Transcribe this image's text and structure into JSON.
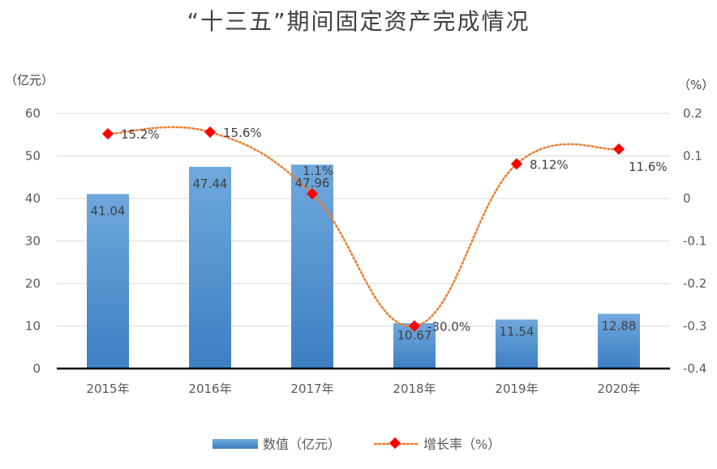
{
  "chart_data": {
    "type": "bar",
    "title": "“十三五”期间固定资产完成情况",
    "ylabel_left": "（亿元）",
    "ylabel_right": "（%）",
    "categories": [
      "2015年",
      "2016年",
      "2017年",
      "2018年",
      "2019年",
      "2020年"
    ],
    "ylim_left": [
      0,
      60
    ],
    "yticks_left": [
      "0",
      "10",
      "20",
      "30",
      "40",
      "50",
      "60"
    ],
    "ylim_right": [
      -0.4,
      0.2
    ],
    "yticks_right": [
      "-0.4",
      "-0.3",
      "-0.2",
      "-0.1",
      "0",
      "0.1",
      "0.2"
    ],
    "grid": true,
    "legend_position": "bottom",
    "series": [
      {
        "name": "数值（亿元）",
        "type": "bar",
        "axis": "left",
        "color": "#5b9bd5",
        "values": [
          41.04,
          47.44,
          47.96,
          10.67,
          11.54,
          12.88
        ],
        "labels": [
          "41.04",
          "47.44",
          "47.96",
          "10.67",
          "11.54",
          "12.88"
        ]
      },
      {
        "name": "增长率（%）",
        "type": "line",
        "axis": "right",
        "color": "#ed7d31",
        "marker_color": "#ff0000",
        "values": [
          0.152,
          0.156,
          0.011,
          -0.3,
          0.0812,
          0.116
        ],
        "labels": [
          "15.2%",
          "15.6%",
          "1.1%",
          "-30.0%",
          "8.12%",
          "11.6%"
        ]
      }
    ]
  }
}
